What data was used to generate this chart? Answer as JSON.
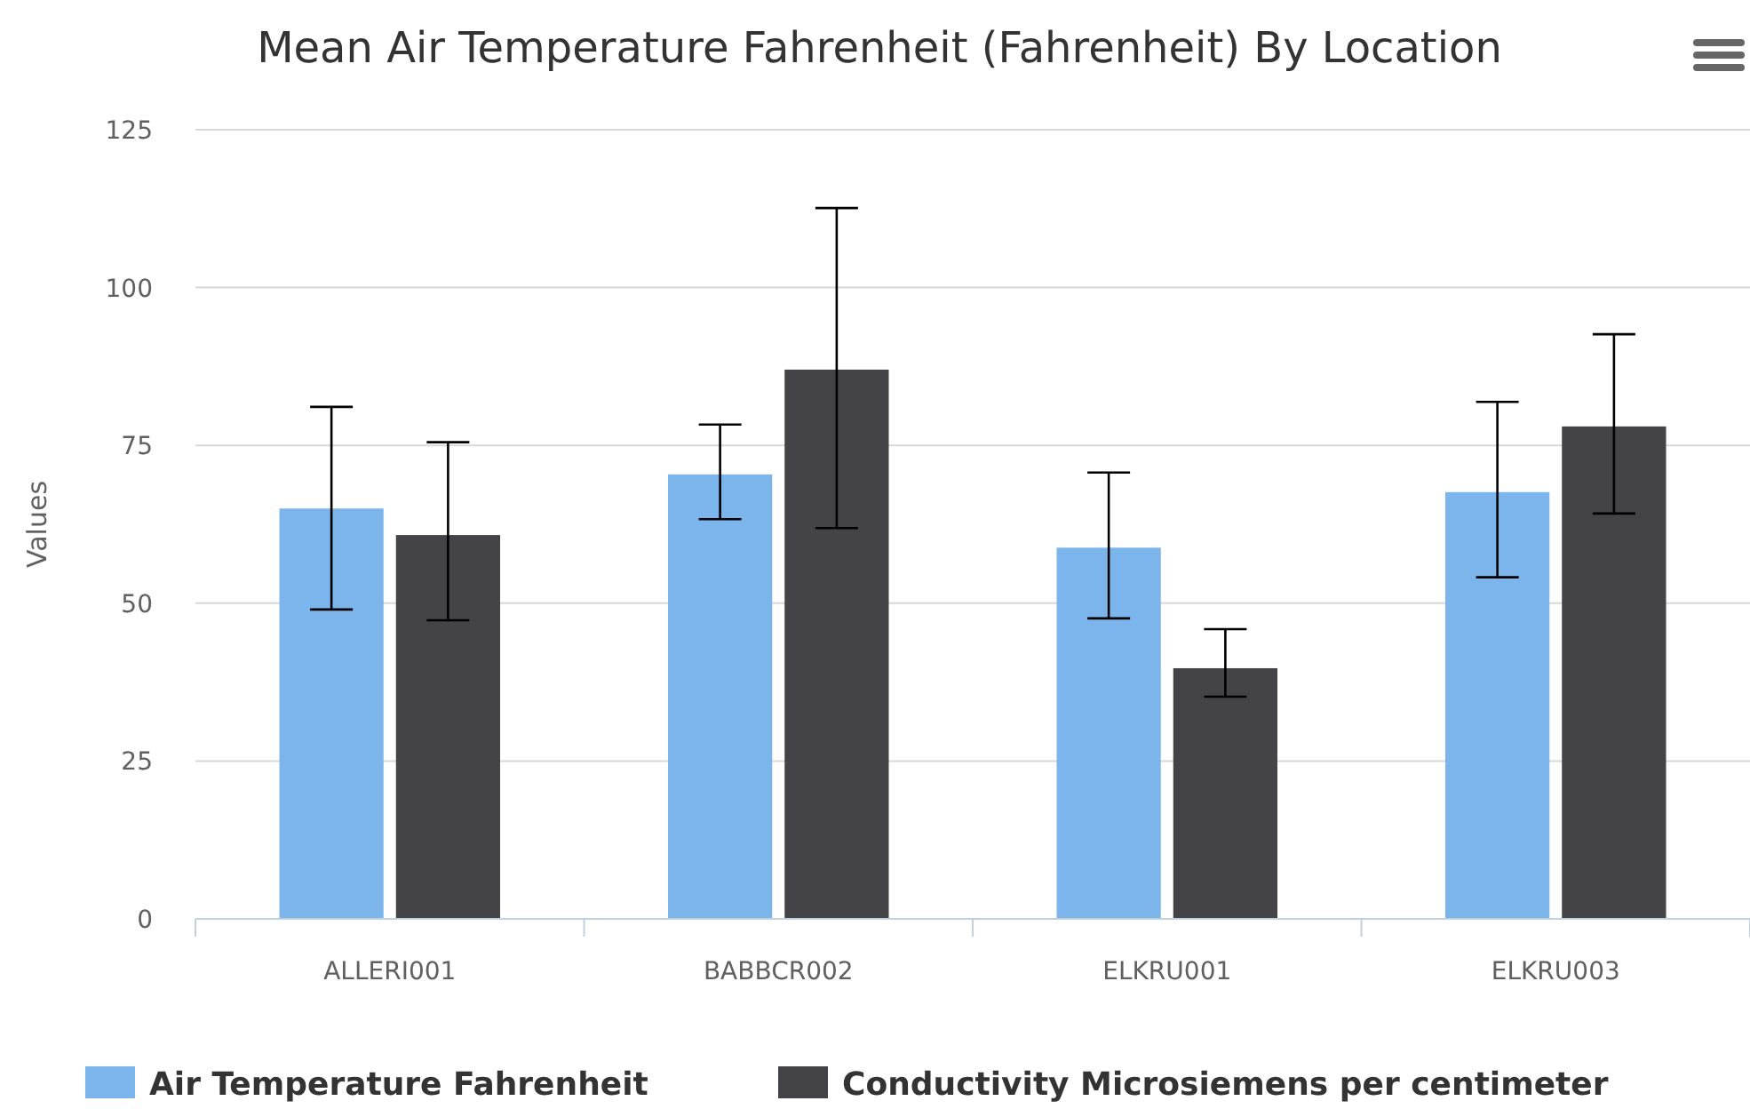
{
  "chart_data": {
    "type": "bar",
    "title": "Mean Air Temperature Fahrenheit (Fahrenheit) By Location",
    "ylabel": "Values",
    "categories": [
      "ALLERI001",
      "BABBCR002",
      "ELKRU001",
      "ELKRU003"
    ],
    "series": [
      {
        "name": "Air Temperature Fahrenheit",
        "color": "#7cb5ec",
        "values": [
          65,
          70.4,
          58.8,
          67.6
        ],
        "errors": [
          [
            49,
            81.1
          ],
          [
            63.3,
            78.3
          ],
          [
            47.6,
            70.7
          ],
          [
            54.1,
            81.9
          ]
        ]
      },
      {
        "name": "Conductivity Microsiemens per centimeter",
        "color": "#434348",
        "values": [
          60.8,
          87,
          39.7,
          78
        ],
        "errors": [
          [
            47.3,
            75.5
          ],
          [
            61.9,
            112.6
          ],
          [
            35.2,
            45.9
          ],
          [
            64.2,
            92.6
          ]
        ]
      }
    ],
    "ylim": [
      0,
      125
    ],
    "yticks": [
      0,
      25,
      50,
      75,
      100,
      125
    ],
    "grid": "y",
    "legend": "bottom"
  }
}
